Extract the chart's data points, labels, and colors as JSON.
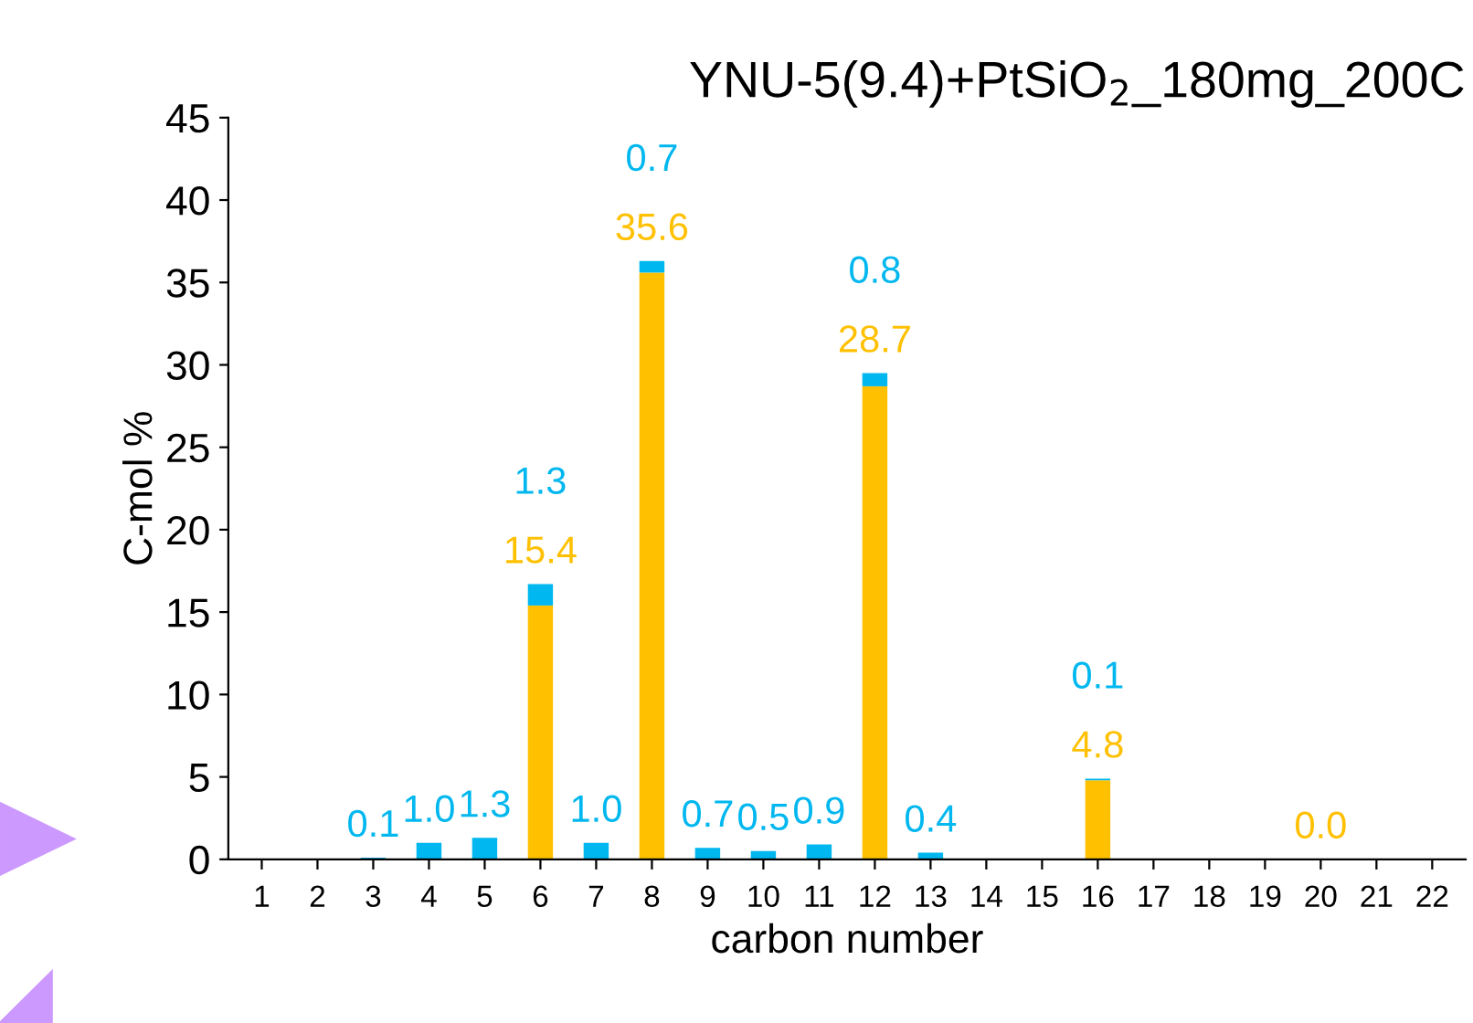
{
  "chart_data": {
    "type": "bar",
    "stacked": true,
    "title": "YNU-5(9.4)+PtSiO$_{2}$_180mg_200C",
    "xlabel": "carbon number",
    "ylabel": "C-mol %",
    "categories": [
      "1",
      "2",
      "3",
      "4",
      "5",
      "6",
      "7",
      "8",
      "9",
      "10",
      "11",
      "12",
      "13",
      "14",
      "15",
      "16",
      "17",
      "18",
      "19",
      "20",
      "21",
      "22"
    ],
    "series": [
      {
        "color": "#ffc000",
        "values": [
          null,
          null,
          null,
          null,
          null,
          15.4,
          null,
          35.6,
          null,
          null,
          null,
          28.7,
          null,
          null,
          null,
          4.8,
          null,
          null,
          null,
          0.0,
          null,
          null
        ],
        "value_labels": [
          null,
          null,
          null,
          null,
          null,
          "15.4",
          null,
          "35.6",
          null,
          null,
          null,
          "28.7",
          null,
          null,
          null,
          "4.8",
          null,
          null,
          null,
          "0.0",
          null,
          null
        ]
      },
      {
        "color": "#00b7ef",
        "values": [
          null,
          null,
          0.1,
          1.0,
          1.3,
          1.3,
          1.0,
          0.7,
          0.7,
          0.5,
          0.9,
          0.8,
          0.4,
          null,
          null,
          0.1,
          null,
          null,
          null,
          null,
          null,
          null
        ],
        "value_labels": [
          null,
          null,
          "0.1",
          "1.0",
          "1.3",
          "1.3",
          "1.0",
          "0.7",
          "0.7",
          "0.5",
          "0.9",
          "0.8",
          "0.4",
          null,
          null,
          "0.1",
          null,
          null,
          null,
          null,
          null,
          null
        ]
      }
    ],
    "ylim": [
      0,
      45
    ],
    "yticks": [
      0,
      5,
      10,
      15,
      20,
      25,
      30,
      35,
      40,
      45
    ],
    "grid": false,
    "legend": false
  }
}
